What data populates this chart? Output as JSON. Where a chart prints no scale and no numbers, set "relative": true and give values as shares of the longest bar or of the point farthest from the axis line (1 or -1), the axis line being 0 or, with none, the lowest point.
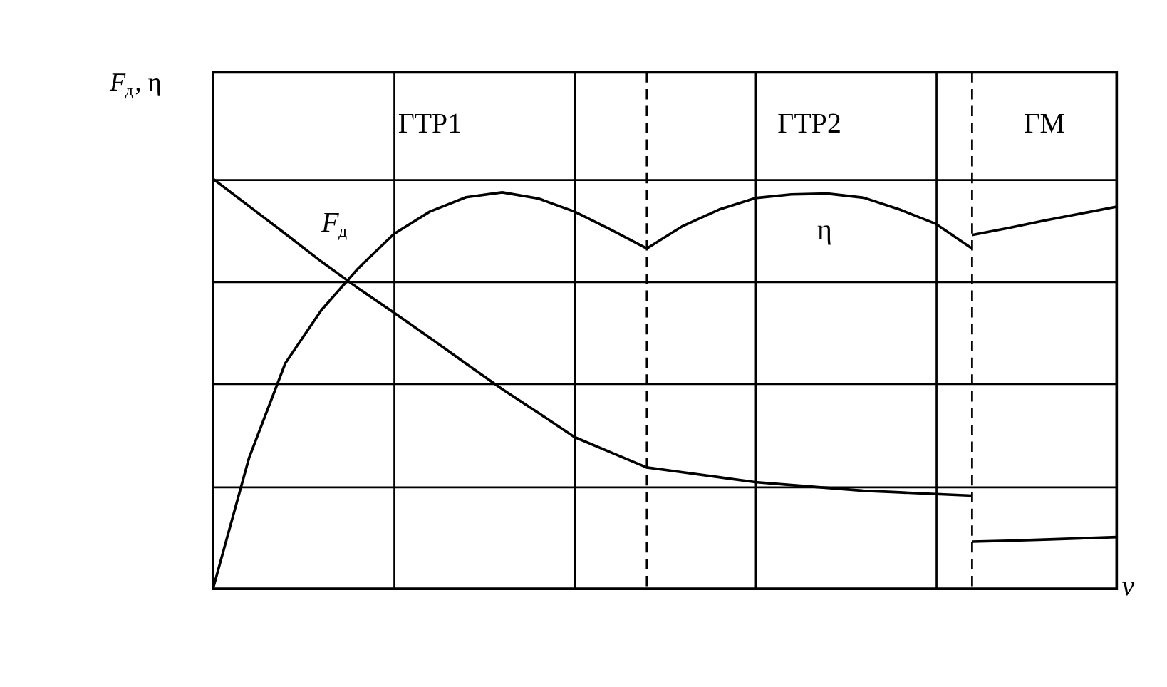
{
  "chart_data": {
    "type": "line",
    "relative": true,
    "xlabel": "v",
    "ylabel": "F$_{д}$, η",
    "categories": [
      null,
      null,
      null,
      null,
      null,
      null,
      null,
      null,
      null,
      null,
      null,
      null,
      null,
      null,
      null,
      null,
      null,
      null,
      null,
      null,
      null,
      null,
      null,
      null,
      null,
      null
    ],
    "grid": true,
    "line_style": "solid",
    "series": [
      {
        "name": "F$_{д}$",
        "color": "#000000",
        "values": [
          1.0,
          0.933,
          0.866,
          0.798,
          0.734,
          0.674,
          0.612,
          0.549,
          0.487,
          0.429,
          0.37,
          0.333,
          0.296,
          0.284,
          0.272,
          0.26,
          0.253,
          0.246,
          0.239,
          0.235,
          0.231,
          0.227,
          null,
          null,
          null,
          null
        ]
      },
      {
        "color": "#000000",
        "values": [
          null,
          null,
          null,
          null,
          null,
          null,
          null,
          null,
          null,
          null,
          null,
          null,
          null,
          null,
          null,
          null,
          null,
          null,
          null,
          null,
          null,
          0.115,
          0.117,
          0.12,
          0.123,
          0.126
        ]
      },
      {
        "name": "η",
        "color": "#000000",
        "values": [
          0,
          0.32,
          0.55,
          0.68,
          0.78,
          0.865,
          0.92,
          0.955,
          0.967,
          0.952,
          0.92,
          0.876,
          0.83,
          0.885,
          0.925,
          0.953,
          0.962,
          0.964,
          0.954,
          0.925,
          0.89,
          0.83,
          null,
          null,
          null,
          null
        ]
      },
      {
        "color": "#000000",
        "values": [
          null,
          null,
          null,
          null,
          null,
          null,
          null,
          null,
          null,
          null,
          null,
          null,
          null,
          null,
          null,
          null,
          null,
          null,
          null,
          null,
          null,
          0.863,
          0.88,
          0.898,
          0.915,
          0.932
        ]
      }
    ],
    "annotations": [
      "ГТР1",
      "ГТР2",
      "ГМ"
    ]
  }
}
